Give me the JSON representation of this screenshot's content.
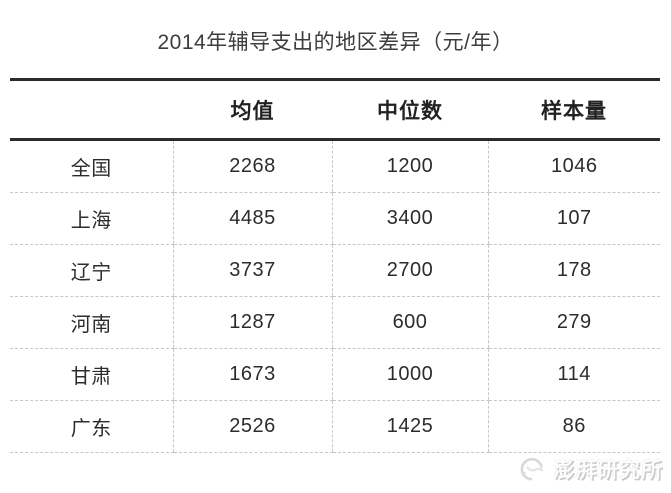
{
  "title": "2014年辅导支出的地区差异（元/年）",
  "watermark": {
    "label": "澎湃研究所",
    "logo_icon": "paper-logo-icon"
  },
  "colors": {
    "background": "#ffffff",
    "rule_dark": "#2b2b2b",
    "rule_dashed": "#c7c7c7",
    "text": "#2c2c2c",
    "title_text": "#3d3d3d",
    "watermark_text": "#dcdcdc"
  },
  "chart_data": {
    "type": "table",
    "title": "2014年辅导支出的地区差异（元/年）",
    "columns": [
      "",
      "均值",
      "中位数",
      "样本量"
    ],
    "rows": [
      {
        "region": "全国",
        "mean": 2268,
        "median": 1200,
        "sample": 1046
      },
      {
        "region": "上海",
        "mean": 4485,
        "median": 3400,
        "sample": 107
      },
      {
        "region": "辽宁",
        "mean": 3737,
        "median": 2700,
        "sample": 178
      },
      {
        "region": "河南",
        "mean": 1287,
        "median": 600,
        "sample": 279
      },
      {
        "region": "甘肃",
        "mean": 1673,
        "median": 1000,
        "sample": 114
      },
      {
        "region": "广东",
        "mean": 2526,
        "median": 1425,
        "sample": 86
      }
    ],
    "layout": {
      "grid": "dashed-separators",
      "header_rule": "thick-top-and-bottom"
    }
  }
}
